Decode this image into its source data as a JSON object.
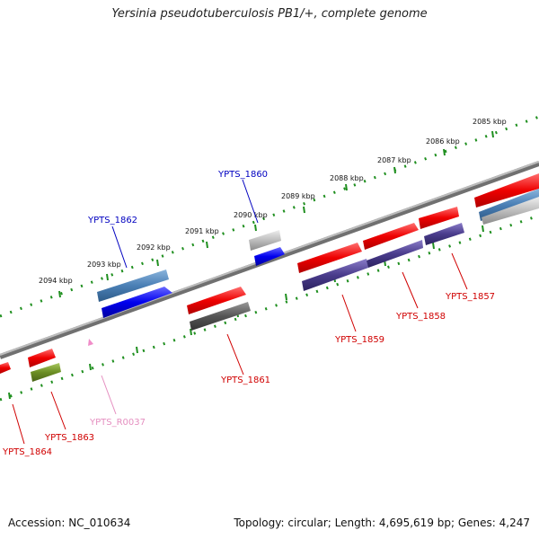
{
  "title": "Yersinia pseudotuberculosis PB1/+, complete genome",
  "accession_label": "Accession: NC_010634",
  "stats_label": "Topology: circular; Length: 4,695,619 bp; Genes: 4,247",
  "ticks": [
    "2085 kbp",
    "2086 kbp",
    "2087 kbp",
    "2088 kbp",
    "2089 kbp",
    "2090 kbp",
    "2091 kbp",
    "2092 kbp",
    "2093 kbp",
    "2094 kbp"
  ],
  "genes": [
    {
      "id": "YPTS_1857",
      "color": "#d00000"
    },
    {
      "id": "YPTS_1858",
      "color": "#d00000"
    },
    {
      "id": "YPTS_1859",
      "color": "#d00000"
    },
    {
      "id": "YPTS_1860",
      "color": "#0000c0"
    },
    {
      "id": "YPTS_1861",
      "color": "#d00000"
    },
    {
      "id": "YPTS_1862",
      "color": "#0000c0"
    },
    {
      "id": "YPTS_1863",
      "color": "#d00000"
    },
    {
      "id": "YPTS_1864",
      "color": "#d00000"
    },
    {
      "id": "YPTS_R0037",
      "color": "#e58fc0"
    }
  ],
  "colors": {
    "backbone": "#808080",
    "ruler": "#1f8f1f",
    "red_feature": "#ee0000",
    "blue_feature": "#0000ee",
    "steel_feature": "#4a7fb5",
    "grey_feature": "#bdbdbd",
    "dark_feature": "#555555",
    "purple_feature": "#4a3c8c",
    "olive_feature": "#6b8e23",
    "pink_feature": "#f08cc8"
  }
}
